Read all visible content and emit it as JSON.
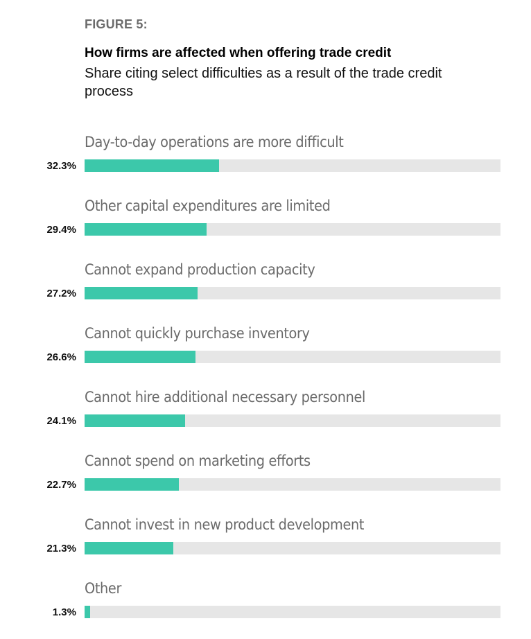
{
  "figure": {
    "label": "FIGURE 5:",
    "title": "How firms are affected when offering trade credit",
    "subtitle": "Share citing select difficulties as a result of the trade credit process"
  },
  "colors": {
    "bar_fill": "#3cc8aa",
    "track": "#e6e6e6",
    "label_text": "#6a6a6a",
    "figure_label": "#6b6b6b"
  },
  "chart_data": {
    "type": "bar",
    "orientation": "horizontal",
    "title": "How firms are affected when offering trade credit",
    "subtitle": "Share citing select difficulties as a result of the trade credit process",
    "xlabel": "",
    "ylabel": "",
    "xlim": [
      0,
      100
    ],
    "grid": false,
    "categories": [
      "Day-to-day operations are more difficult",
      "Other capital expenditures are limited",
      "Cannot expand production capacity",
      "Cannot quickly purchase inventory",
      "Cannot hire additional necessary personnel",
      "Cannot spend on marketing efforts",
      "Cannot invest in new product development",
      "Other"
    ],
    "values": [
      32.3,
      29.4,
      27.2,
      26.6,
      24.1,
      22.7,
      21.3,
      1.3
    ],
    "value_labels": [
      "32.3%",
      "29.4%",
      "27.2%",
      "26.6%",
      "24.1%",
      "22.7%",
      "21.3%",
      "1.3%"
    ]
  }
}
